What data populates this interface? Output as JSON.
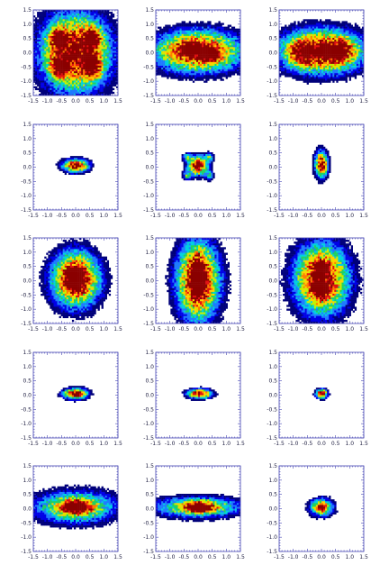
{
  "chart_data": {
    "type": "heatmap",
    "layout": {
      "rows": 5,
      "cols": 3
    },
    "axis": {
      "xlim": [
        -1.5,
        1.5
      ],
      "ylim": [
        -1.5,
        1.5
      ],
      "xticks": [
        "-1.5",
        "-1.0",
        "-0.5",
        "0.0",
        "0.5",
        "1.0",
        "1.5"
      ],
      "yticks": [
        "1.5",
        "1.0",
        "0.5",
        "0.0",
        "-0.5",
        "-1.0",
        "-1.5"
      ],
      "tick_color": "#4646b4",
      "frame_color": "#4646b4",
      "grid": false
    },
    "colormap": [
      "#00007a",
      "#0000e6",
      "#1e7bff",
      "#00d0e0",
      "#20d060",
      "#c8f000",
      "#ffd200",
      "#ff7a00",
      "#e01010",
      "#8a0000"
    ],
    "panels": [
      {
        "row": 1,
        "col": 1,
        "blobs": [
          {
            "x": 0.0,
            "y": 0.0,
            "sx": 1.2,
            "sy": 1.35,
            "w": 1.0
          },
          {
            "x": -0.6,
            "y": 0.5,
            "sx": 0.3,
            "sy": 0.35,
            "w": 0.6
          },
          {
            "x": 0.6,
            "y": 0.5,
            "sx": 0.3,
            "sy": 0.35,
            "w": 0.6
          },
          {
            "x": -0.6,
            "y": -0.5,
            "sx": 0.3,
            "sy": 0.35,
            "w": 0.6
          },
          {
            "x": 0.6,
            "y": -0.5,
            "sx": 0.3,
            "sy": 0.35,
            "w": 0.6
          }
        ]
      },
      {
        "row": 1,
        "col": 2,
        "blobs": [
          {
            "x": 0.0,
            "y": 0.05,
            "sx": 1.5,
            "sy": 0.7,
            "w": 1.0
          },
          {
            "x": -0.3,
            "y": 0.15,
            "sx": 0.35,
            "sy": 0.2,
            "w": 0.5
          },
          {
            "x": 0.4,
            "y": -0.05,
            "sx": 0.35,
            "sy": 0.2,
            "w": 0.5
          }
        ]
      },
      {
        "row": 1,
        "col": 3,
        "blobs": [
          {
            "x": 0.0,
            "y": 0.05,
            "sx": 1.45,
            "sy": 0.75,
            "w": 1.0
          },
          {
            "x": -0.7,
            "y": 0.0,
            "sx": 0.45,
            "sy": 0.4,
            "w": 0.4
          },
          {
            "x": 0.7,
            "y": 0.05,
            "sx": 0.45,
            "sy": 0.4,
            "w": 0.4
          },
          {
            "x": 0.2,
            "y": 0.05,
            "sx": 0.3,
            "sy": 0.15,
            "w": 0.5
          }
        ]
      },
      {
        "row": 2,
        "col": 1,
        "blobs": [
          {
            "x": 0.0,
            "y": 0.05,
            "sx": 0.45,
            "sy": 0.22,
            "w": 1.0
          }
        ]
      },
      {
        "row": 2,
        "col": 2,
        "blobs": [
          {
            "x": 0.0,
            "y": 0.05,
            "sx": 0.35,
            "sy": 0.33,
            "w": 1.0
          },
          {
            "x": -0.4,
            "y": 0.35,
            "sx": 0.15,
            "sy": 0.15,
            "w": 0.4
          },
          {
            "x": 0.4,
            "y": 0.35,
            "sx": 0.15,
            "sy": 0.15,
            "w": 0.4
          },
          {
            "x": -0.4,
            "y": -0.3,
            "sx": 0.15,
            "sy": 0.15,
            "w": 0.4
          },
          {
            "x": 0.4,
            "y": -0.3,
            "sx": 0.15,
            "sy": 0.15,
            "w": 0.4
          }
        ]
      },
      {
        "row": 2,
        "col": 3,
        "blobs": [
          {
            "x": 0.0,
            "y": 0.1,
            "sx": 0.22,
            "sy": 0.45,
            "w": 1.0
          }
        ]
      },
      {
        "row": 3,
        "col": 1,
        "blobs": [
          {
            "x": 0.0,
            "y": 0.05,
            "sx": 0.85,
            "sy": 0.95,
            "w": 1.0
          },
          {
            "x": 0.0,
            "y": 0.05,
            "sx": 0.3,
            "sy": 0.4,
            "w": 0.6
          }
        ]
      },
      {
        "row": 3,
        "col": 2,
        "blobs": [
          {
            "x": 0.0,
            "y": 0.0,
            "sx": 0.75,
            "sy": 1.35,
            "w": 1.0
          },
          {
            "x": 0.0,
            "y": 0.05,
            "sx": 0.25,
            "sy": 0.7,
            "w": 0.5
          }
        ]
      },
      {
        "row": 3,
        "col": 3,
        "blobs": [
          {
            "x": 0.0,
            "y": 0.05,
            "sx": 0.95,
            "sy": 1.2,
            "w": 1.0
          },
          {
            "x": 0.0,
            "y": 0.45,
            "sx": 0.25,
            "sy": 0.22,
            "w": 0.5
          },
          {
            "x": 0.0,
            "y": -0.35,
            "sx": 0.25,
            "sy": 0.22,
            "w": 0.5
          }
        ]
      },
      {
        "row": 4,
        "col": 1,
        "blobs": [
          {
            "x": 0.0,
            "y": 0.05,
            "sx": 0.42,
            "sy": 0.18,
            "w": 1.0
          }
        ]
      },
      {
        "row": 4,
        "col": 2,
        "blobs": [
          {
            "x": 0.05,
            "y": 0.05,
            "sx": 0.42,
            "sy": 0.16,
            "w": 1.0
          }
        ]
      },
      {
        "row": 4,
        "col": 3,
        "blobs": [
          {
            "x": 0.0,
            "y": 0.05,
            "sx": 0.2,
            "sy": 0.16,
            "w": 1.0
          }
        ]
      },
      {
        "row": 5,
        "col": 1,
        "blobs": [
          {
            "x": 0.0,
            "y": 0.05,
            "sx": 1.45,
            "sy": 0.55,
            "w": 0.7
          },
          {
            "x": 0.0,
            "y": 0.05,
            "sx": 0.45,
            "sy": 0.22,
            "w": 0.7
          }
        ]
      },
      {
        "row": 5,
        "col": 2,
        "blobs": [
          {
            "x": 0.0,
            "y": 0.05,
            "sx": 1.5,
            "sy": 0.35,
            "w": 0.7
          },
          {
            "x": 0.05,
            "y": 0.05,
            "sx": 0.45,
            "sy": 0.16,
            "w": 0.7
          }
        ]
      },
      {
        "row": 5,
        "col": 3,
        "blobs": [
          {
            "x": 0.0,
            "y": 0.05,
            "sx": 0.4,
            "sy": 0.3,
            "w": 0.8
          },
          {
            "x": 0.0,
            "y": 0.05,
            "sx": 0.12,
            "sy": 0.1,
            "w": 0.6
          }
        ]
      }
    ]
  }
}
